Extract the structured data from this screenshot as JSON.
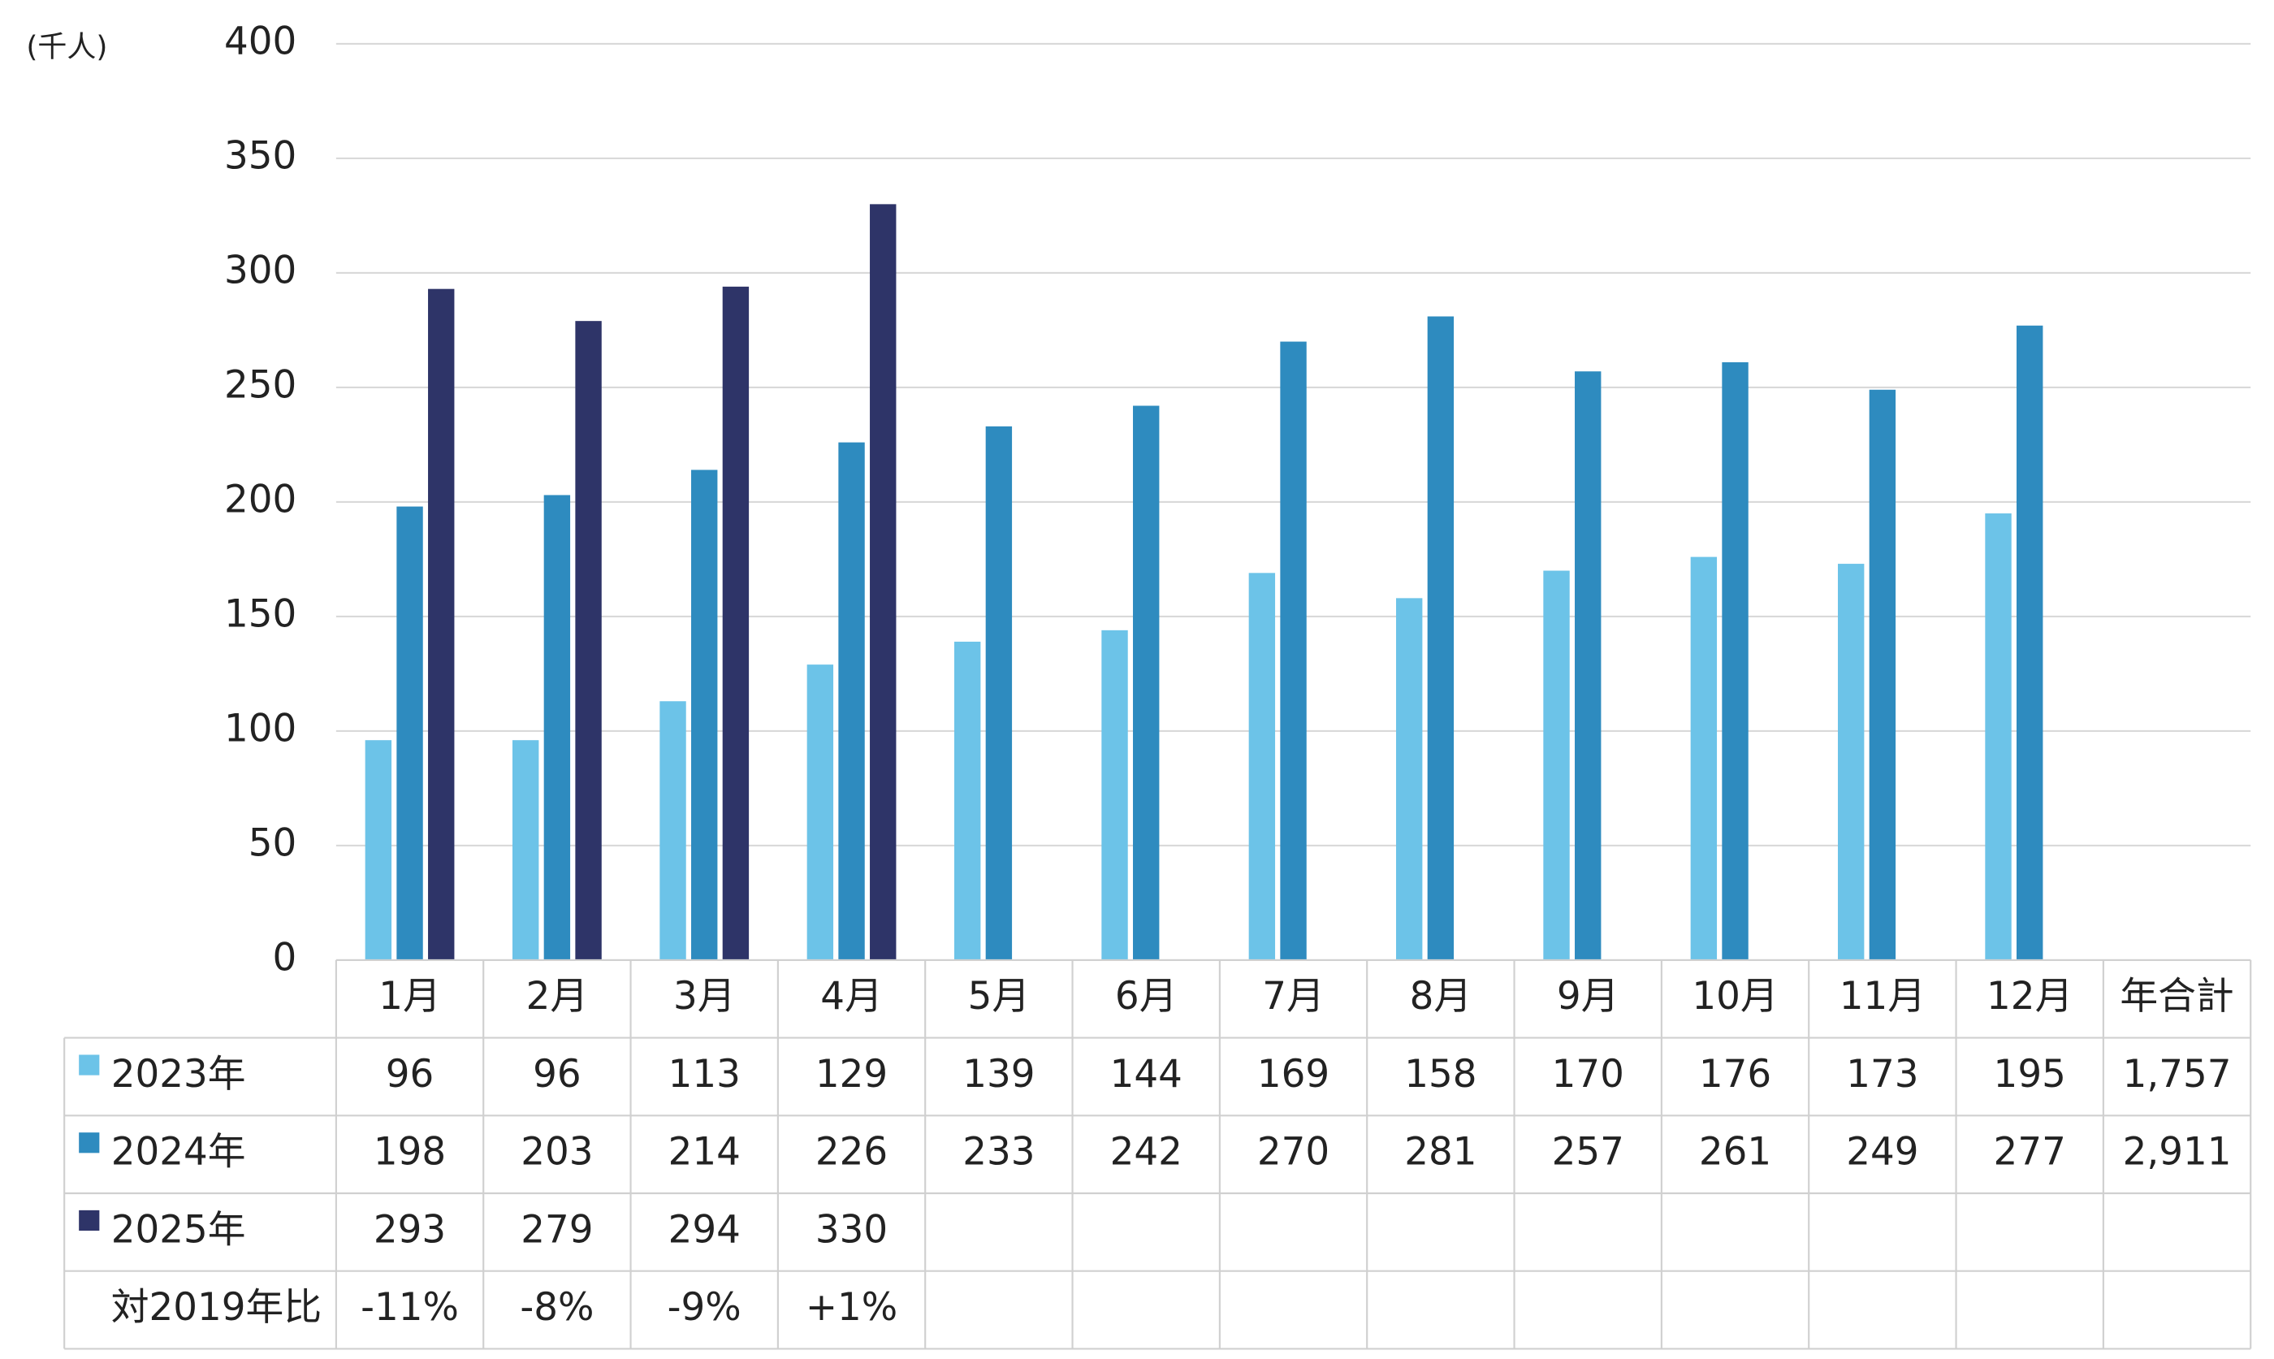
{
  "chart_data": {
    "type": "bar",
    "y_label": "(千人)",
    "categories": [
      "1月",
      "2月",
      "3月",
      "4月",
      "5月",
      "6月",
      "7月",
      "8月",
      "9月",
      "10月",
      "11月",
      "12月"
    ],
    "total_header": "年合計",
    "series": [
      {
        "name": "2023年",
        "color": "#6cc3e8",
        "values": [
          96,
          96,
          113,
          129,
          139,
          144,
          169,
          158,
          170,
          176,
          173,
          195
        ],
        "total": 1757,
        "total_label": "1,757"
      },
      {
        "name": "2024年",
        "color": "#2e8bbf",
        "values": [
          198,
          203,
          214,
          226,
          233,
          242,
          270,
          281,
          257,
          261,
          249,
          277
        ],
        "total": 2911,
        "total_label": "2,911"
      },
      {
        "name": "2025年",
        "color": "#2e3468",
        "values": [
          293,
          279,
          294,
          330,
          null,
          null,
          null,
          null,
          null,
          null,
          null,
          null
        ]
      }
    ],
    "ratio_row": {
      "name": "対2019年比",
      "values": [
        -11,
        -8,
        -9,
        1,
        null,
        null,
        null,
        null,
        null,
        null,
        null,
        null
      ],
      "value_labels": [
        "-11%",
        "-8%",
        "-9%",
        "+1%",
        null,
        null,
        null,
        null,
        null,
        null,
        null,
        null
      ]
    },
    "ylim": [
      0,
      400
    ],
    "yticks": [
      0,
      50,
      100,
      150,
      200,
      250,
      300,
      350,
      400
    ],
    "grid": true
  }
}
